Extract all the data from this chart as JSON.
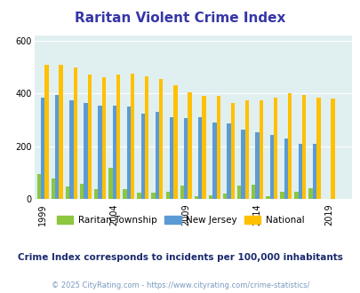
{
  "title": "Raritan Violent Crime Index",
  "title_color": "#3636a8",
  "subtitle": "Crime Index corresponds to incidents per 100,000 inhabitants",
  "footer": "© 2025 CityRating.com - https://www.cityrating.com/crime-statistics/",
  "years": [
    1999,
    2000,
    2001,
    2002,
    2003,
    2004,
    2005,
    2006,
    2007,
    2008,
    2009,
    2010,
    2011,
    2012,
    2013,
    2014,
    2015,
    2016,
    2017,
    2018,
    2019,
    2020
  ],
  "raritan": [
    95,
    80,
    47,
    58,
    37,
    120,
    37,
    25,
    25,
    27,
    50,
    10,
    14,
    22,
    50,
    55,
    10,
    27,
    27,
    40,
    0,
    0
  ],
  "new_jersey": [
    385,
    395,
    375,
    365,
    355,
    355,
    350,
    325,
    330,
    310,
    305,
    310,
    290,
    285,
    263,
    252,
    243,
    230,
    210,
    210,
    0,
    0
  ],
  "national": [
    507,
    507,
    497,
    470,
    460,
    470,
    475,
    465,
    455,
    430,
    405,
    390,
    390,
    365,
    375,
    375,
    385,
    400,
    395,
    385,
    380,
    0
  ],
  "bar_width": 0.27,
  "ylim": [
    0,
    620
  ],
  "yticks": [
    0,
    200,
    400,
    600
  ],
  "bg_color": "#e0eff0",
  "raritan_color": "#8dc63f",
  "nj_color": "#5b9bd5",
  "national_color": "#ffc000",
  "subtitle_color": "#1a2a6e",
  "footer_color": "#7a9abf",
  "xtick_years": [
    1999,
    2004,
    2009,
    2014,
    2019
  ],
  "title_fontsize": 11,
  "subtitle_fontsize": 7.5,
  "footer_fontsize": 6,
  "tick_fontsize": 7,
  "legend_fontsize": 7.5
}
